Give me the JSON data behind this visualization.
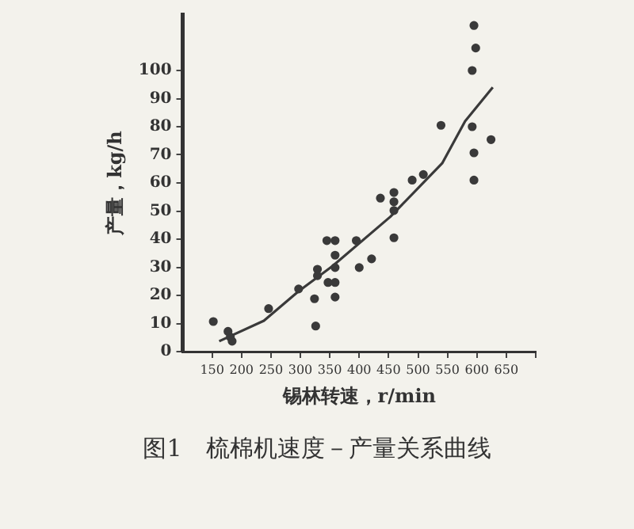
{
  "chart_data": {
    "type": "scatter",
    "title": "图1　梳棉机速度－产量关系曲线",
    "xlabel": "锡林转速，r/min",
    "ylabel": "产量，kg/h",
    "xlim": [
      100,
      700
    ],
    "ylim": [
      0,
      120
    ],
    "xticks": [
      150,
      200,
      250,
      300,
      350,
      400,
      450,
      500,
      550,
      600,
      650,
      {
        "value": 700,
        "label": null
      }
    ],
    "yticks": [
      0,
      10,
      20,
      30,
      40,
      50,
      60,
      70,
      80,
      90,
      100
    ],
    "grid": false,
    "legend": false,
    "marker": "circle",
    "series": [
      {
        "color": "#3a3a3a",
        "x": [
          152,
          177,
          181,
          184,
          246,
          297,
          324,
          326,
          329,
          329,
          345,
          359,
          347,
          359,
          359,
          359,
          359,
          395,
          400,
          421,
          436,
          459,
          459,
          459,
          459,
          490,
          509,
          539,
          592,
          592,
          595,
          595,
          598,
          595,
          624
        ],
        "values": [
          10.7,
          7.2,
          5.2,
          3.7,
          15.3,
          22.3,
          18.8,
          9.1,
          29.3,
          27,
          39.5,
          39.5,
          24.6,
          24.6,
          19.4,
          29.9,
          34.3,
          39.5,
          29.9,
          33,
          54.6,
          56.6,
          53.3,
          50.2,
          40.5,
          61,
          63,
          80.5,
          100,
          80,
          70.7,
          61,
          108,
          116,
          75.4
        ]
      },
      {
        "type": "line",
        "color": "#3a3a3a",
        "marker": "none",
        "line_style": "solid",
        "x": [
          162,
          238,
          297,
          355,
          453,
          541,
          580,
          627
        ],
        "values": [
          3.7,
          11,
          21.5,
          30.5,
          48,
          67,
          82,
          94
        ]
      }
    ]
  }
}
